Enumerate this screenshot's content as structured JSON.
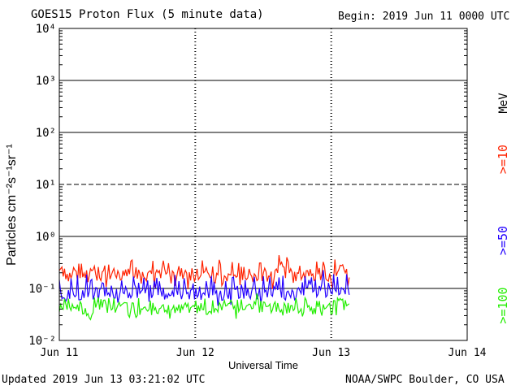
{
  "header": {
    "title": "GOES15 Proton Flux (5 minute data)",
    "begin": "Begin: 2019 Jun 11 0000 UTC"
  },
  "footer": {
    "updated": "Updated 2019 Jun 13 03:21:02 UTC",
    "credit": "NOAA/SWPC Boulder, CO USA"
  },
  "chart_data": {
    "type": "line",
    "title": "GOES15 Proton Flux (5 minute data)",
    "xlabel": "Universal Time",
    "ylabel": "Particles cm⁻²s⁻¹sr⁻¹",
    "yscale": "log",
    "ylim": [
      0.01,
      10000
    ],
    "y_tick_labels": [
      "10⁻²",
      "10⁻¹",
      "10⁰",
      "10¹",
      "10²",
      "10³",
      "10⁴"
    ],
    "xlim": [
      "2019-06-11 00:00",
      "2019-06-14 00:00"
    ],
    "x_tick_labels": [
      "Jun 11",
      "Jun 12",
      "Jun 13",
      "Jun 14"
    ],
    "grid": true,
    "threshold_line": 10,
    "legend_placement": "right (vertical labels)",
    "legend_unit": "MeV",
    "series": [
      {
        "name": ">=10",
        "color": "#ff2200",
        "x_end": "2019-06-13 03:20",
        "typical_value": 0.18,
        "min_value": 0.09,
        "max_value": 0.45
      },
      {
        "name": ">=50",
        "color": "#2200ff",
        "x_end": "2019-06-13 03:20",
        "typical_value": 0.08,
        "min_value": 0.045,
        "max_value": 0.25
      },
      {
        "name": ">=100",
        "color": "#22ee00",
        "x_end": "2019-06-13 03:20",
        "typical_value": 0.04,
        "min_value": 0.025,
        "max_value": 0.08
      }
    ]
  }
}
